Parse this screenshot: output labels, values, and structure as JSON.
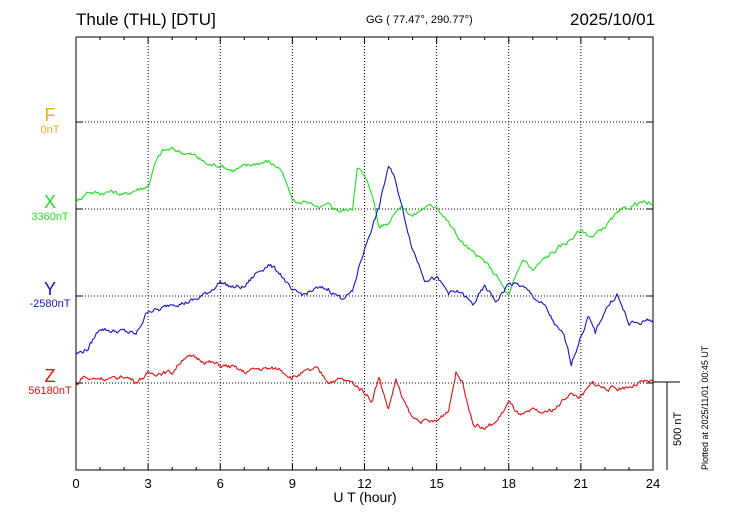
{
  "header": {
    "station": "Thule (THL)  [DTU]",
    "coords": "GG ( 77.47°, 290.77°)",
    "date": "2025/10/01"
  },
  "footer_note": "Plotted at 2025/11/01 00:45 UT",
  "colors": {
    "F": "#f0b000",
    "X": "#22dd22",
    "Y": "#1515cc",
    "Z": "#dd1111"
  },
  "chart_data": {
    "type": "line",
    "title": "",
    "xlabel": "U T (hour)",
    "ylabel": "",
    "xlim": [
      0,
      24
    ],
    "x_ticks": [
      "0",
      "3",
      "6",
      "9",
      "12",
      "15",
      "18",
      "21",
      "24"
    ],
    "grid": true,
    "scale_bar": {
      "label": "500 nT",
      "value_nT": 500
    },
    "components": [
      {
        "name": "F",
        "baseline_label": "0nT",
        "values": []
      },
      {
        "name": "X",
        "baseline_label": "3360nT",
        "x": [
          0,
          0.5,
          1,
          1.5,
          2,
          2.5,
          3,
          3.3,
          3.6,
          4,
          4.5,
          5,
          5.5,
          6,
          6.5,
          7,
          7.5,
          8,
          8.5,
          9,
          9.3,
          9.6,
          10,
          10.5,
          11,
          11.5,
          11.7,
          12,
          12.3,
          12.6,
          13,
          13.3,
          13.6,
          14,
          14.5,
          15,
          15.3,
          15.6,
          16,
          16.5,
          17,
          17.5,
          18,
          18.3,
          18.6,
          19,
          19.5,
          20,
          20.5,
          21,
          21.5,
          22,
          22.5,
          23,
          23.5,
          24
        ],
        "values": [
          40,
          100,
          90,
          100,
          80,
          110,
          130,
          260,
          330,
          340,
          320,
          300,
          250,
          250,
          220,
          240,
          260,
          270,
          230,
          50,
          30,
          50,
          0,
          20,
          -10,
          0,
          250,
          180,
          100,
          -100,
          -80,
          0,
          10,
          -40,
          10,
          20,
          -40,
          -100,
          -180,
          -250,
          -300,
          -380,
          -500,
          -380,
          -280,
          -350,
          -280,
          -230,
          -180,
          -120,
          -160,
          -100,
          -30,
          10,
          40,
          20
        ]
      },
      {
        "name": "Y",
        "baseline_label": "-2580nT",
        "x": [
          0,
          0.5,
          1,
          1.5,
          2,
          2.5,
          3,
          3.5,
          4,
          4.5,
          5,
          5.5,
          6,
          6.5,
          7,
          7.5,
          8,
          8.5,
          9,
          9.5,
          10,
          10.5,
          11,
          11.5,
          11.8,
          12.2,
          12.6,
          13,
          13.3,
          13.6,
          14,
          14.5,
          15,
          15.5,
          16,
          16.5,
          17,
          17.5,
          18,
          18.5,
          19,
          19.5,
          20,
          20.3,
          20.6,
          21,
          21.3,
          21.6,
          22,
          22.5,
          23,
          23.5,
          24
        ],
        "values": [
          -330,
          -300,
          -180,
          -200,
          -200,
          -220,
          -80,
          -80,
          -40,
          -40,
          -20,
          20,
          80,
          50,
          50,
          130,
          180,
          130,
          20,
          10,
          40,
          40,
          -10,
          20,
          180,
          350,
          500,
          740,
          650,
          480,
          270,
          100,
          100,
          20,
          20,
          -50,
          50,
          -30,
          70,
          60,
          0,
          -60,
          -180,
          -230,
          -380,
          -230,
          -120,
          -210,
          -80,
          10,
          -160,
          -150,
          -130
        ]
      },
      {
        "name": "Z",
        "baseline_label": "56180nT",
        "x": [
          0,
          0.3,
          0.6,
          1,
          1.5,
          2,
          2.5,
          3,
          3.5,
          4,
          4.5,
          5,
          5.5,
          6,
          6.5,
          7,
          7.5,
          8,
          8.5,
          9,
          9.5,
          10,
          10.5,
          11,
          11.5,
          12,
          12.3,
          12.6,
          13,
          13.3,
          13.6,
          14,
          14.5,
          15,
          15.5,
          15.8,
          16.1,
          16.5,
          17,
          17.5,
          18,
          18.5,
          19,
          19.5,
          20,
          20.5,
          21,
          21.5,
          22,
          22.5,
          23,
          23.5,
          24
        ],
        "values": [
          -20,
          40,
          20,
          30,
          20,
          40,
          10,
          50,
          60,
          60,
          150,
          140,
          120,
          100,
          90,
          60,
          80,
          80,
          80,
          30,
          60,
          80,
          10,
          20,
          0,
          -50,
          -100,
          30,
          -150,
          20,
          -100,
          -200,
          -220,
          -220,
          -150,
          60,
          0,
          -230,
          -260,
          -220,
          -110,
          -190,
          -160,
          -170,
          -140,
          -60,
          -80,
          0,
          -30,
          -30,
          -20,
          0,
          10
        ]
      }
    ]
  }
}
